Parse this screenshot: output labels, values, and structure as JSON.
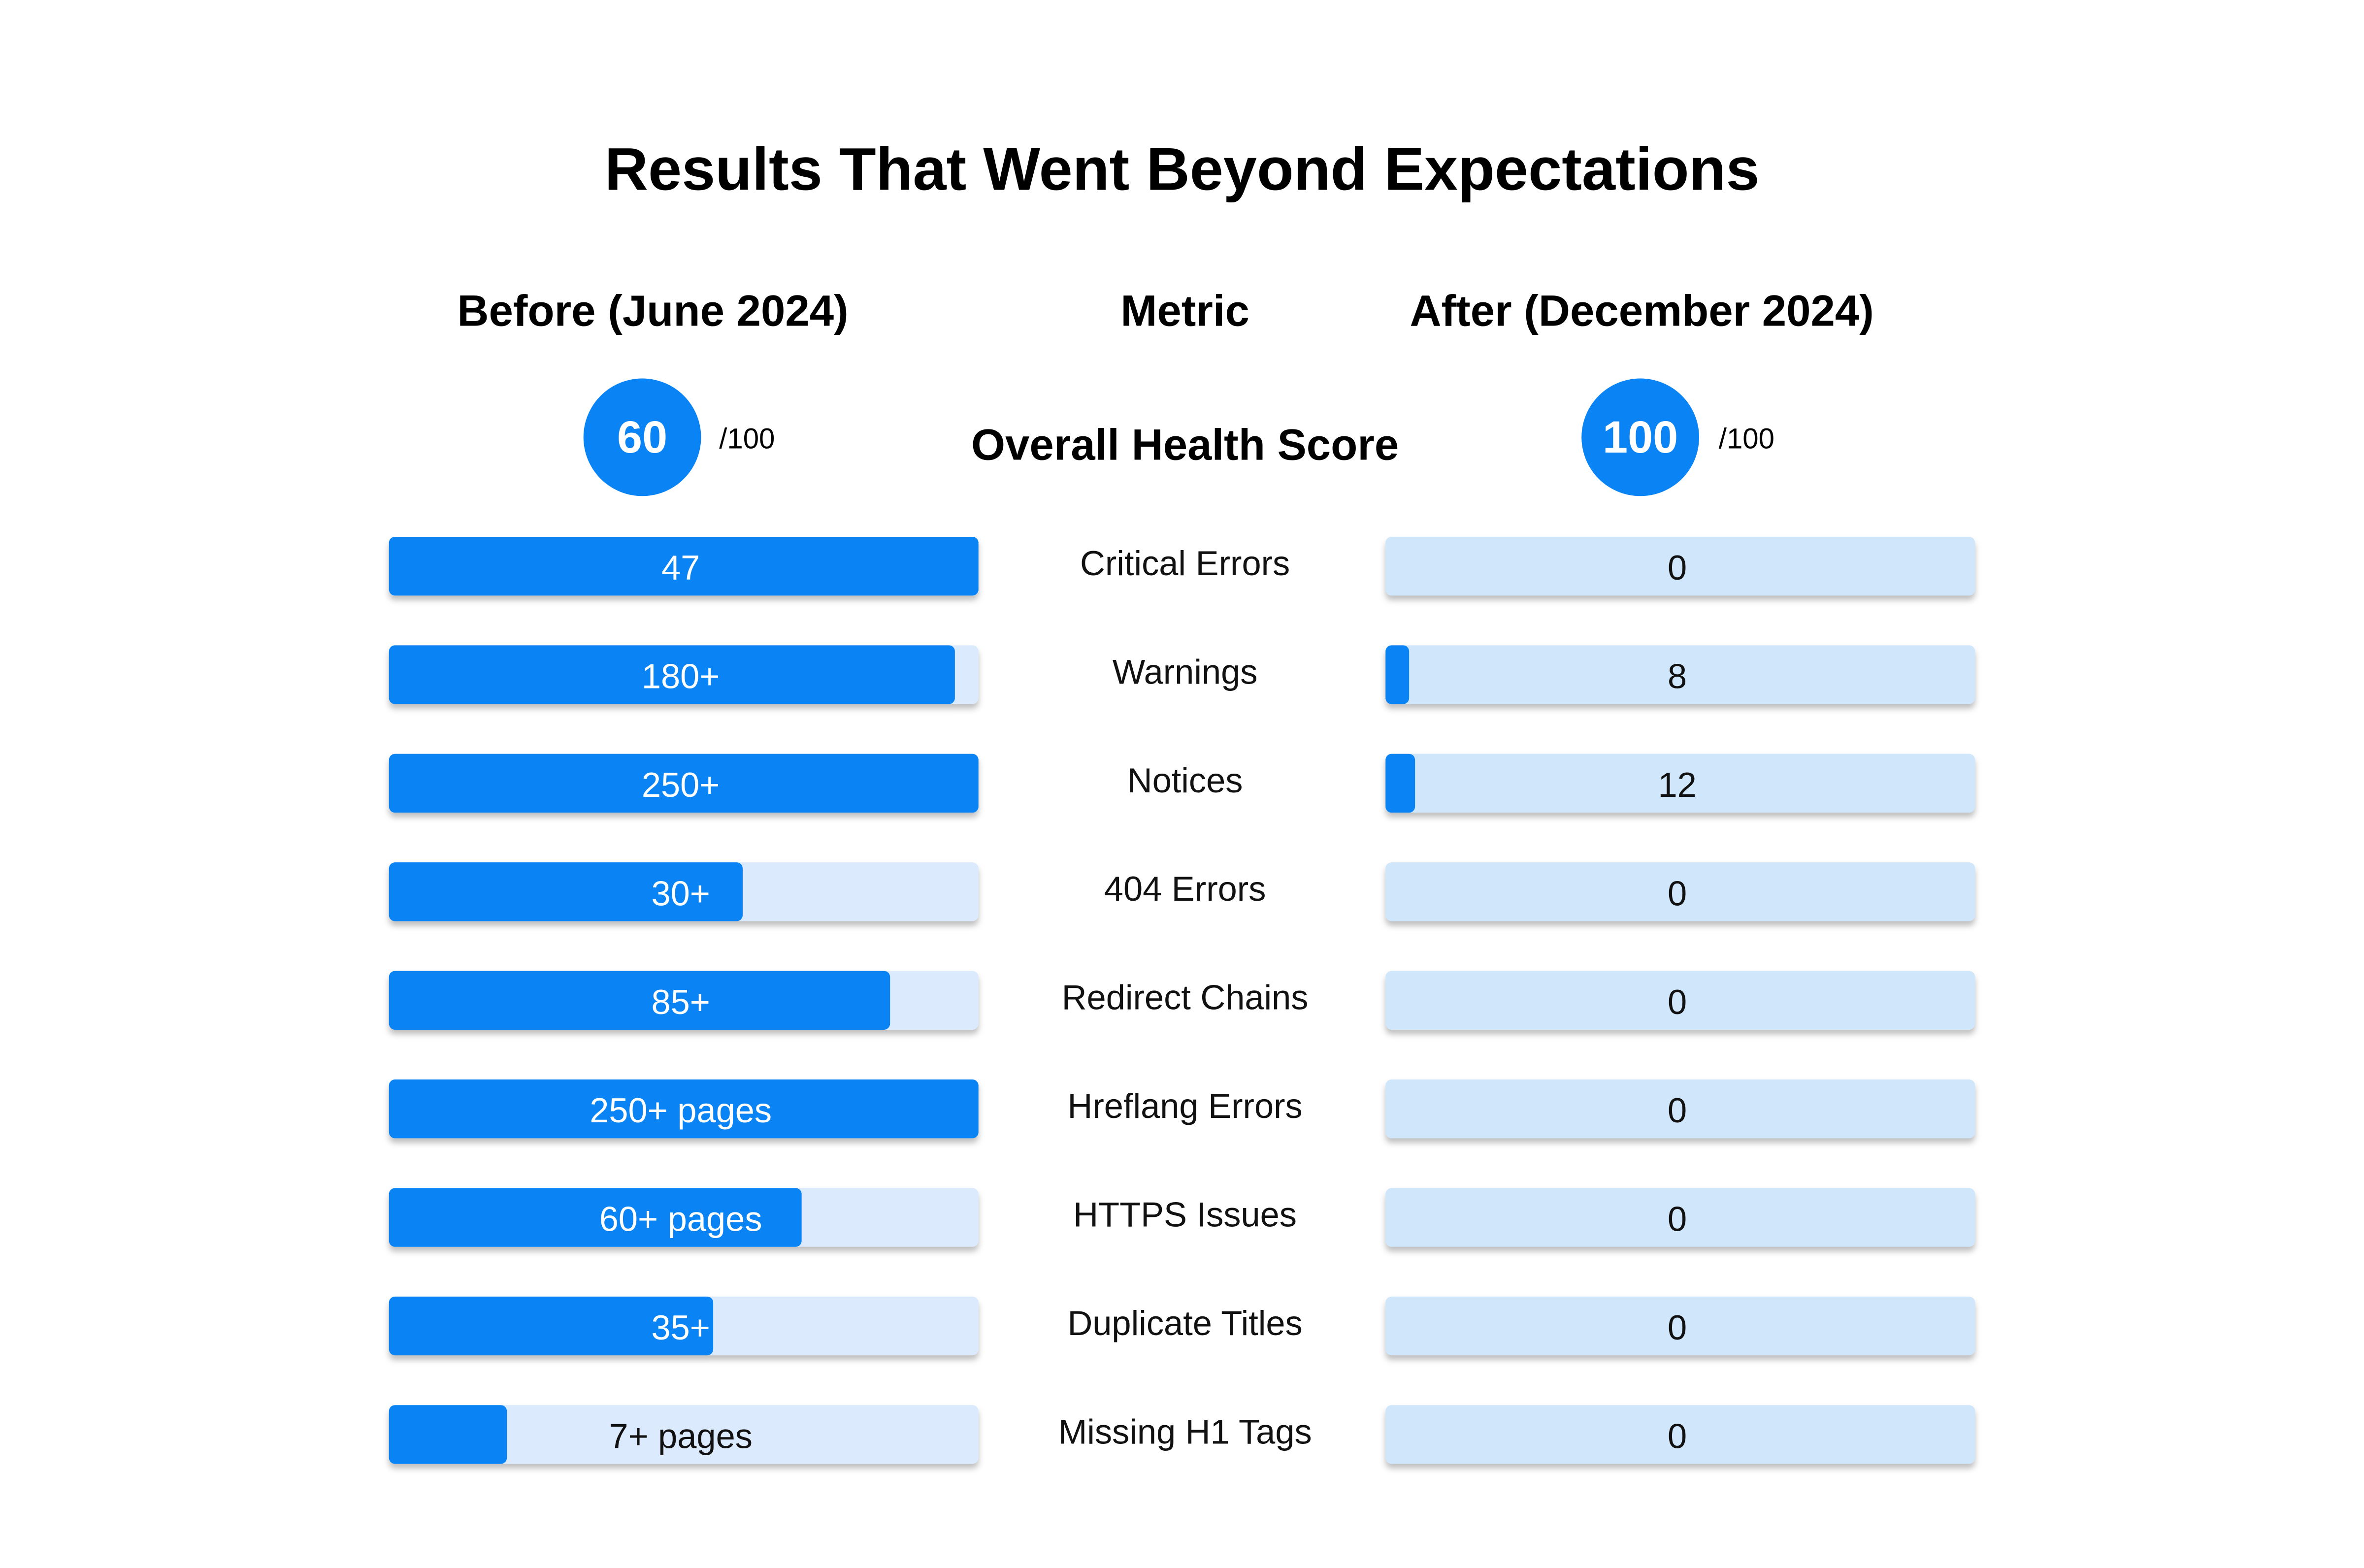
{
  "title": "Results That Went Beyond Expectations",
  "headers": {
    "before": "Before (June 2024)",
    "metric": "Metric",
    "after": "After (December 2024)"
  },
  "health": {
    "label": "Overall Health Score",
    "before": {
      "score": 60,
      "max": "/100"
    },
    "after": {
      "score": 100,
      "max": "/100"
    }
  },
  "rows": [
    {
      "metric": "Critical Errors",
      "before": {
        "label": "47",
        "fill": 100
      },
      "after": {
        "label": "0",
        "fill": 0
      }
    },
    {
      "metric": "Warnings",
      "before": {
        "label": "180+",
        "fill": 96
      },
      "after": {
        "label": "8",
        "fill": 4
      }
    },
    {
      "metric": "Notices",
      "before": {
        "label": "250+",
        "fill": 100
      },
      "after": {
        "label": "12",
        "fill": 5
      }
    },
    {
      "metric": "404 Errors",
      "before": {
        "label": "30+",
        "fill": 60
      },
      "after": {
        "label": "0",
        "fill": 0
      }
    },
    {
      "metric": "Redirect Chains",
      "before": {
        "label": "85+",
        "fill": 85
      },
      "after": {
        "label": "0",
        "fill": 0
      }
    },
    {
      "metric": "Hreflang Errors",
      "before": {
        "label": "250+ pages",
        "fill": 100
      },
      "after": {
        "label": "0",
        "fill": 0
      }
    },
    {
      "metric": "HTTPS Issues",
      "before": {
        "label": "60+ pages",
        "fill": 70
      },
      "after": {
        "label": "0",
        "fill": 0
      }
    },
    {
      "metric": "Duplicate Titles",
      "before": {
        "label": "35+",
        "fill": 55
      },
      "after": {
        "label": "0",
        "fill": 0
      }
    },
    {
      "metric": "Missing H1 Tags",
      "before": {
        "label": "7+ pages",
        "fill": 20
      },
      "after": {
        "label": "0",
        "fill": 0
      }
    }
  ]
}
